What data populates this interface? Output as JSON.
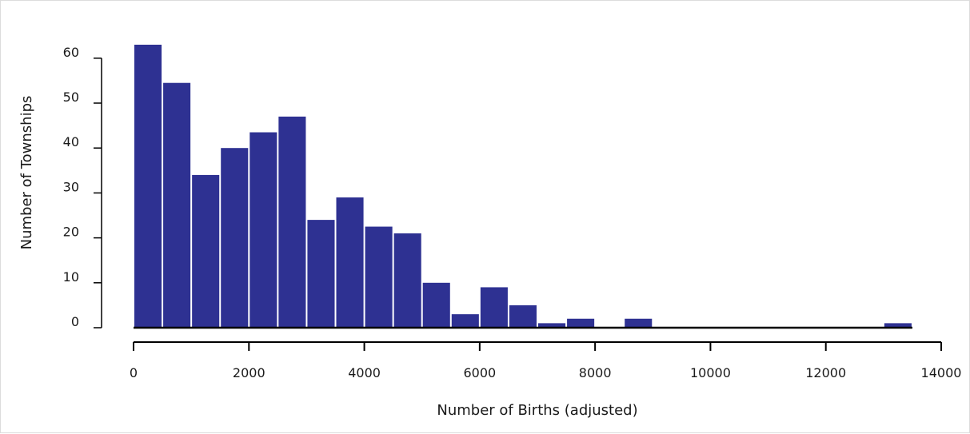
{
  "chart_data": {
    "type": "bar",
    "subtype": "histogram",
    "title": "",
    "xlabel": "Number of Births (adjusted)",
    "ylabel": "Number of Townships",
    "bin_width": 500,
    "bins": [
      {
        "x0": 0,
        "x1": 500,
        "value": 63
      },
      {
        "x0": 500,
        "x1": 1000,
        "value": 54.5
      },
      {
        "x0": 1000,
        "x1": 1500,
        "value": 34
      },
      {
        "x0": 1500,
        "x1": 2000,
        "value": 40
      },
      {
        "x0": 2000,
        "x1": 2500,
        "value": 43.5
      },
      {
        "x0": 2500,
        "x1": 3000,
        "value": 47
      },
      {
        "x0": 3000,
        "x1": 3500,
        "value": 24
      },
      {
        "x0": 3500,
        "x1": 4000,
        "value": 29
      },
      {
        "x0": 4000,
        "x1": 4500,
        "value": 22.5
      },
      {
        "x0": 4500,
        "x1": 5000,
        "value": 21
      },
      {
        "x0": 5000,
        "x1": 5500,
        "value": 10
      },
      {
        "x0": 5500,
        "x1": 6000,
        "value": 3
      },
      {
        "x0": 6000,
        "x1": 6500,
        "value": 9
      },
      {
        "x0": 6500,
        "x1": 7000,
        "value": 5
      },
      {
        "x0": 7000,
        "x1": 7500,
        "value": 1
      },
      {
        "x0": 7500,
        "x1": 8000,
        "value": 2
      },
      {
        "x0": 8000,
        "x1": 8500,
        "value": 0
      },
      {
        "x0": 8500,
        "x1": 9000,
        "value": 2
      },
      {
        "x0": 9000,
        "x1": 9500,
        "value": 0
      },
      {
        "x0": 9500,
        "x1": 10000,
        "value": 0
      },
      {
        "x0": 10000,
        "x1": 10500,
        "value": 0
      },
      {
        "x0": 10500,
        "x1": 11000,
        "value": 0
      },
      {
        "x0": 11000,
        "x1": 11500,
        "value": 0
      },
      {
        "x0": 11500,
        "x1": 12000,
        "value": 0
      },
      {
        "x0": 12000,
        "x1": 12500,
        "value": 0
      },
      {
        "x0": 12500,
        "x1": 13000,
        "value": 0
      },
      {
        "x0": 13000,
        "x1": 13500,
        "value": 1
      }
    ],
    "xlim": [
      0,
      14000
    ],
    "ylim": [
      0,
      65
    ],
    "xticks": [
      0,
      2000,
      4000,
      6000,
      8000,
      10000,
      12000,
      14000
    ],
    "xtick_labels": [
      "0",
      "2000",
      "4000",
      "6000",
      "8000",
      "10000",
      "12000",
      "14000"
    ],
    "yticks": [
      0,
      10,
      20,
      30,
      40,
      50,
      60
    ],
    "ytick_labels": [
      "0",
      "10",
      "20",
      "30",
      "40",
      "50",
      "60"
    ],
    "bar_color": "#2e3192",
    "grid": false,
    "legend": "none"
  }
}
